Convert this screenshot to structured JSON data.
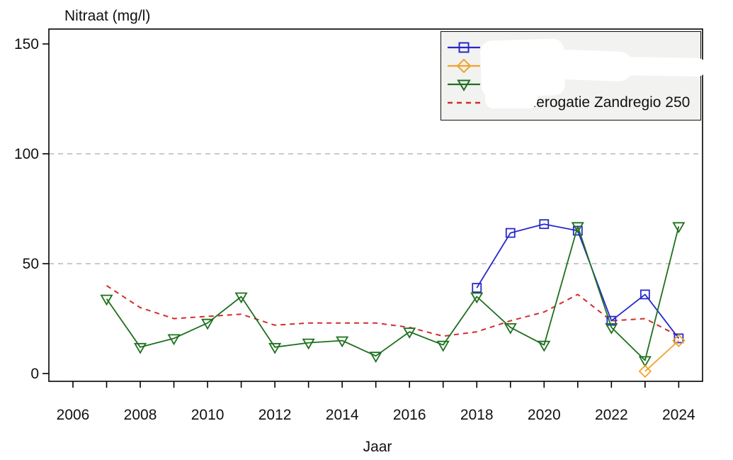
{
  "chart_data": {
    "type": "line",
    "title": "Nitraat (mg/l)",
    "xlabel": "Jaar",
    "ylabel": "Nitraat (mg/l)",
    "xlim": [
      2005.3,
      2024.7
    ],
    "ylim": [
      -3.5,
      157
    ],
    "yticks": [
      0,
      50,
      100,
      150
    ],
    "x_tick_labels": [
      2006,
      2008,
      2010,
      2012,
      2014,
      2016,
      2018,
      2020,
      2022,
      2024
    ],
    "x_ticks_minor_years": [
      2006,
      2007,
      2008,
      2009,
      2010,
      2011,
      2012,
      2013,
      2014,
      2015,
      2016,
      2017,
      2018,
      2019,
      2020,
      2021,
      2022,
      2023,
      2024
    ],
    "grid_y": [
      50,
      100
    ],
    "grid_on": true,
    "colors": {
      "grid": "#ababab",
      "axis": "#000000",
      "legend_bg": "#f2f2f0",
      "legend_border": "#111111",
      "blue": "#2828cd",
      "orange": "#f0a428",
      "green": "#1e701e",
      "red": "#d22d2d"
    },
    "series": [
      {
        "name": "",
        "redacted_label": true,
        "color": "#d22d2d",
        "marker": "none",
        "line": "dashed",
        "x": [
          2007,
          2008,
          2009,
          2010,
          2011,
          2012,
          2013,
          2014,
          2015,
          2016,
          2017,
          2018,
          2019,
          2020,
          2021,
          2022,
          2023,
          2024
        ],
        "values": [
          40,
          30,
          25,
          26,
          27,
          22,
          23,
          23,
          23,
          21,
          17,
          19,
          24,
          28,
          36,
          24,
          25,
          17
        ],
        "legend_label": "LMM derogatie Zandregio 250"
      },
      {
        "name": "",
        "redacted_label": true,
        "color": "#2828cd",
        "marker": "square",
        "line": "solid",
        "x": [
          2018,
          2019,
          2020,
          2021,
          2022,
          2023,
          2024
        ],
        "values": [
          39,
          64,
          68,
          65,
          24,
          36,
          16
        ],
        "legend_label": ""
      },
      {
        "name": "",
        "redacted_label": true,
        "color": "#1e701e",
        "marker": "triangle-down",
        "line": "solid",
        "x": [
          2007,
          2008,
          2009,
          2010,
          2011,
          2012,
          2013,
          2014,
          2015,
          2016,
          2017,
          2018,
          2019,
          2020,
          2021,
          2022,
          2023,
          2024
        ],
        "values": [
          34,
          12,
          16,
          23,
          35,
          12,
          14,
          15,
          8,
          19,
          13,
          35,
          21,
          13,
          67,
          21,
          6,
          67
        ],
        "legend_label": ""
      },
      {
        "name": "",
        "redacted_label": true,
        "color": "#f0a428",
        "marker": "diamond",
        "line": "solid",
        "x": [
          2023,
          2024
        ],
        "values": [
          1,
          15
        ],
        "legend_label": ""
      }
    ],
    "legend": {
      "position": "top-right",
      "items": [
        {
          "label": "",
          "redacted": true,
          "marker": "square",
          "color": "#2828cd",
          "line": "solid"
        },
        {
          "label": "",
          "redacted": true,
          "marker": "diamond",
          "color": "#f0a428",
          "line": "solid"
        },
        {
          "label": "",
          "redacted": true,
          "marker": "triangle-down",
          "color": "#1e701e",
          "line": "solid"
        },
        {
          "label": "LMM derogatie Zandregio 250",
          "redacted": false,
          "marker": "none",
          "color": "#d22d2d",
          "line": "dashed"
        }
      ]
    }
  }
}
